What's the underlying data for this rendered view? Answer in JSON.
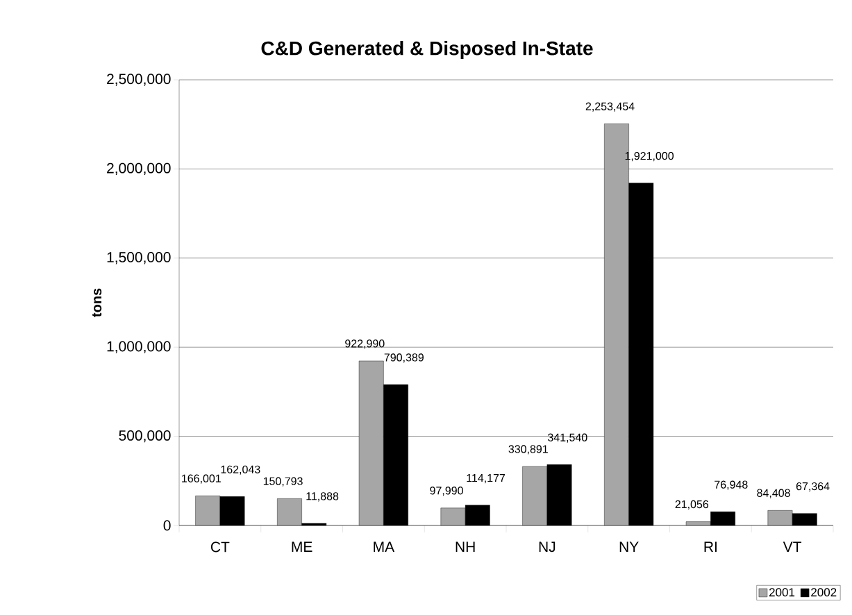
{
  "chart_data": {
    "type": "bar",
    "title": "C&D Generated & Disposed In-State",
    "ylabel": "tons",
    "categories": [
      "CT",
      "ME",
      "MA",
      "NH",
      "NJ",
      "NY",
      "RI",
      "VT"
    ],
    "series": [
      {
        "name": "2001",
        "color": "#a6a6a6",
        "values": [
          166001,
          150793,
          922990,
          97990,
          330891,
          2253454,
          21056,
          84408
        ],
        "value_labels": [
          "166,001",
          "150,793",
          "922,990",
          "97,990",
          "330,891",
          "2,253,454",
          "21,056",
          "84,408"
        ]
      },
      {
        "name": "2002",
        "color": "#000000",
        "values": [
          162043,
          11888,
          790389,
          114177,
          341540,
          1921000,
          76948,
          67364
        ],
        "value_labels": [
          "162,043",
          "11,888",
          "790,389",
          "114,177",
          "341,540",
          "1,921,000",
          "76,948",
          "67,364"
        ]
      }
    ],
    "ylim": [
      0,
      2500000
    ],
    "yticks": [
      0,
      {
        "value": 500000,
        "label": "500,000"
      },
      {
        "value": 1000000,
        "label": "1,000,000"
      },
      {
        "value": 1500000,
        "label": "1,500,000"
      },
      {
        "value": 2000000,
        "label": "2,000,000"
      },
      {
        "value": 2500000,
        "label": "2,500,000"
      }
    ],
    "grid": "y",
    "legend": "bottom right"
  }
}
